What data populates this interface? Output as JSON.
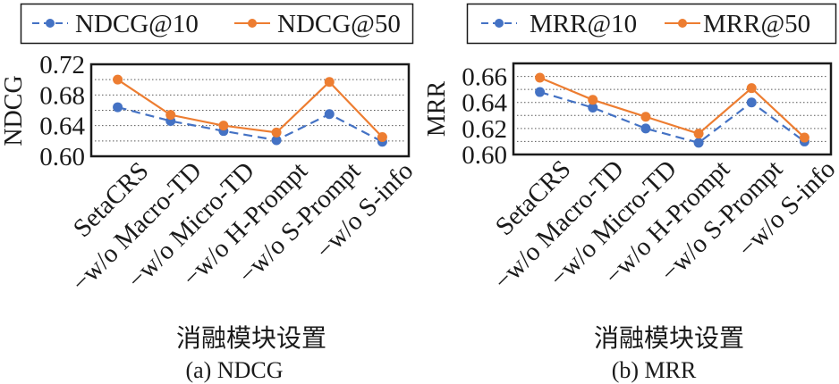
{
  "colors": {
    "series_10": "#4472C4",
    "series_50": "#ED7D31",
    "axis": "#1a1a1a",
    "grid": "#595959"
  },
  "chart_data": [
    {
      "type": "line",
      "id": "ndcg",
      "caption": "(a) NDCG",
      "xlabel": "消融模块设置",
      "ylabel": "NDCG",
      "categories": [
        "SetaCRS",
        "−w/o Macro-TD",
        "−w/o Micro-TD",
        "−w/o H-Prompt",
        "−w/o S-Prompt",
        "−w/o S-info"
      ],
      "ylim": [
        0.6,
        0.72
      ],
      "yticks": [
        0.6,
        0.64,
        0.68,
        0.72
      ],
      "ytick_labels": [
        "0.60",
        "0.64",
        "0.68",
        "0.72"
      ],
      "gridlines": [
        0.62,
        0.64,
        0.66,
        0.68,
        0.7
      ],
      "grid": true,
      "legend_position": "top",
      "series": [
        {
          "name": "NDCG@10",
          "style": "dashed",
          "color_key": "series_10",
          "values": [
            0.664,
            0.646,
            0.633,
            0.621,
            0.655,
            0.619
          ]
        },
        {
          "name": "NDCG@50",
          "style": "solid",
          "color_key": "series_50",
          "values": [
            0.7,
            0.654,
            0.64,
            0.631,
            0.697,
            0.625
          ]
        }
      ]
    },
    {
      "type": "line",
      "id": "mrr",
      "caption": "(b) MRR",
      "xlabel": "消融模块设置",
      "ylabel": "MRR",
      "categories": [
        "SetaCRS",
        "−w/o Macro-TD",
        "−w/o Micro-TD",
        "−w/o H-Prompt",
        "−w/o S-Prompt",
        "−w/o S-info"
      ],
      "ylim": [
        0.6,
        0.67
      ],
      "yticks": [
        0.6,
        0.62,
        0.64,
        0.66
      ],
      "ytick_labels": [
        "0.60",
        "0.62",
        "0.64",
        "0.66"
      ],
      "gridlines": [
        0.61,
        0.62,
        0.63,
        0.64,
        0.65,
        0.66
      ],
      "grid": true,
      "legend_position": "top",
      "series": [
        {
          "name": "MRR@10",
          "style": "dashed",
          "color_key": "series_10",
          "values": [
            0.648,
            0.636,
            0.62,
            0.609,
            0.64,
            0.61
          ]
        },
        {
          "name": "MRR@50",
          "style": "solid",
          "color_key": "series_50",
          "values": [
            0.659,
            0.642,
            0.629,
            0.616,
            0.651,
            0.613
          ]
        }
      ]
    }
  ]
}
